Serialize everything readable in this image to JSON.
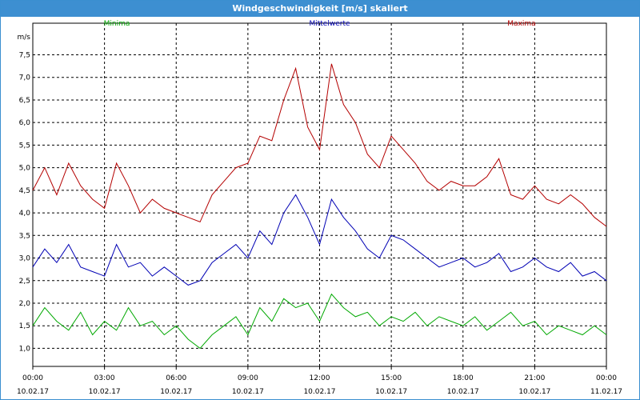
{
  "window": {
    "title": "Windgeschwindigkeit [m/s] skaliert"
  },
  "chart_data": {
    "type": "line",
    "title": "Windgeschwindigkeit [m/s] skaliert",
    "ylabel": "m/s",
    "xlabel": "",
    "ylim": [
      0.6,
      8.2
    ],
    "xlim": [
      0,
      24
    ],
    "grid": true,
    "legend_position": "top",
    "yticks": [
      "1,0",
      "1,5",
      "2,0",
      "2,5",
      "3,0",
      "3,5",
      "4,0",
      "4,5",
      "5,0",
      "5,5",
      "6,0",
      "6,5",
      "7,0",
      "7,5"
    ],
    "ytick_values": [
      1.0,
      1.5,
      2.0,
      2.5,
      3.0,
      3.5,
      4.0,
      4.5,
      5.0,
      5.5,
      6.0,
      6.5,
      7.0,
      7.5
    ],
    "xticks": [
      {
        "time": "00:00",
        "date": "10.02.17"
      },
      {
        "time": "03:00",
        "date": "10.02.17"
      },
      {
        "time": "06:00",
        "date": "10.02.17"
      },
      {
        "time": "09:00",
        "date": "10.02.17"
      },
      {
        "time": "12:00",
        "date": "10.02.17"
      },
      {
        "time": "15:00",
        "date": "10.02.17"
      },
      {
        "time": "18:00",
        "date": "10.02.17"
      },
      {
        "time": "21:00",
        "date": "10.02.17"
      },
      {
        "time": "00:00",
        "date": "11.02.17"
      }
    ],
    "xtick_values": [
      0,
      3,
      6,
      9,
      12,
      15,
      18,
      21,
      24
    ],
    "series": [
      {
        "name": "Minima",
        "color": "#00a800",
        "legend_position": "left",
        "x": [
          0,
          0.5,
          1,
          1.5,
          2,
          2.5,
          3,
          3.5,
          4,
          4.5,
          5,
          5.5,
          6,
          6.5,
          7,
          7.5,
          8,
          8.5,
          9,
          9.5,
          10,
          10.5,
          11,
          11.5,
          12,
          12.5,
          13,
          13.5,
          14,
          14.5,
          15,
          15.5,
          16,
          16.5,
          17,
          17.5,
          18,
          18.5,
          19,
          19.5,
          20,
          20.5,
          21,
          21.5,
          22,
          22.5,
          23,
          23.5,
          24
        ],
        "values": [
          1.5,
          1.9,
          1.6,
          1.4,
          1.8,
          1.3,
          1.6,
          1.4,
          1.9,
          1.5,
          1.6,
          1.3,
          1.5,
          1.2,
          1.0,
          1.3,
          1.5,
          1.7,
          1.3,
          1.9,
          1.6,
          2.1,
          1.9,
          2.0,
          1.6,
          2.2,
          1.9,
          1.7,
          1.8,
          1.5,
          1.7,
          1.6,
          1.8,
          1.5,
          1.7,
          1.6,
          1.5,
          1.7,
          1.4,
          1.6,
          1.8,
          1.5,
          1.6,
          1.3,
          1.5,
          1.4,
          1.3,
          1.5,
          1.3
        ]
      },
      {
        "name": "Mittelwerte",
        "color": "#0000b4",
        "legend_position": "center",
        "x": [
          0,
          0.5,
          1,
          1.5,
          2,
          2.5,
          3,
          3.5,
          4,
          4.5,
          5,
          5.5,
          6,
          6.5,
          7,
          7.5,
          8,
          8.5,
          9,
          9.5,
          10,
          10.5,
          11,
          11.5,
          12,
          12.5,
          13,
          13.5,
          14,
          14.5,
          15,
          15.5,
          16,
          16.5,
          17,
          17.5,
          18,
          18.5,
          19,
          19.5,
          20,
          20.5,
          21,
          21.5,
          22,
          22.5,
          23,
          23.5,
          24
        ],
        "values": [
          2.8,
          3.2,
          2.9,
          3.3,
          2.8,
          2.7,
          2.6,
          3.3,
          2.8,
          2.9,
          2.6,
          2.8,
          2.6,
          2.4,
          2.5,
          2.9,
          3.1,
          3.3,
          3.0,
          3.6,
          3.3,
          4.0,
          4.4,
          3.9,
          3.3,
          4.3,
          3.9,
          3.6,
          3.2,
          3.0,
          3.5,
          3.4,
          3.2,
          3.0,
          2.8,
          2.9,
          3.0,
          2.8,
          2.9,
          3.1,
          2.7,
          2.8,
          3.0,
          2.8,
          2.7,
          2.9,
          2.6,
          2.7,
          2.5
        ]
      },
      {
        "name": "Maxima",
        "color": "#b40000",
        "legend_position": "right",
        "x": [
          0,
          0.5,
          1,
          1.5,
          2,
          2.5,
          3,
          3.5,
          4,
          4.5,
          5,
          5.5,
          6,
          6.5,
          7,
          7.5,
          8,
          8.5,
          9,
          9.5,
          10,
          10.5,
          11,
          11.5,
          12,
          12.5,
          13,
          13.5,
          14,
          14.5,
          15,
          15.5,
          16,
          16.5,
          17,
          17.5,
          18,
          18.5,
          19,
          19.5,
          20,
          20.5,
          21,
          21.5,
          22,
          22.5,
          23,
          23.5,
          24
        ],
        "values": [
          4.5,
          5.0,
          4.4,
          5.1,
          4.6,
          4.3,
          4.1,
          5.1,
          4.6,
          4.0,
          4.3,
          4.1,
          4.0,
          3.9,
          3.8,
          4.4,
          4.7,
          5.0,
          5.1,
          5.7,
          5.6,
          6.5,
          7.2,
          5.9,
          5.4,
          7.3,
          6.4,
          6.0,
          5.3,
          5.0,
          5.7,
          5.4,
          5.1,
          4.7,
          4.5,
          4.7,
          4.6,
          4.6,
          4.8,
          5.2,
          4.4,
          4.3,
          4.6,
          4.3,
          4.2,
          4.4,
          4.2,
          3.9,
          3.7
        ]
      }
    ]
  }
}
